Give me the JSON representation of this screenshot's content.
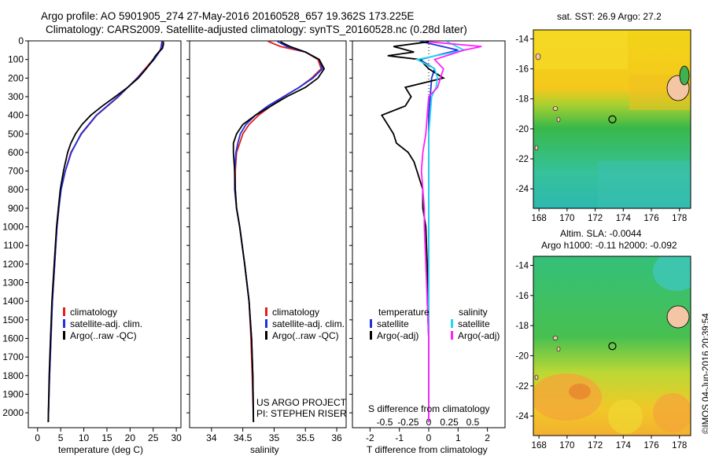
{
  "header": {
    "line1": "Argo profile: AO 5901905_274 27-May-2016 20160528_657 19.362S 173.225E",
    "line2": "Climatology: CARS2009. Satellite-adjusted climatology: synTS_20160528.nc (0.28d later)"
  },
  "colors": {
    "climatology": "#e0201a",
    "satellite": "#2030e0",
    "argo": "#000000",
    "t_satellite": "#2030e0",
    "s_satellite": "#20d8f0",
    "s_argo": "#ff20ff"
  },
  "chart_data": [
    {
      "type": "line",
      "name": "temperature-profile",
      "xlabel": "temperature (deg C)",
      "ylabel": "",
      "xlim": [
        -2,
        31
      ],
      "ylim": [
        2080,
        0
      ],
      "xticks": [
        0,
        5,
        10,
        15,
        20,
        25,
        30
      ],
      "yticks": [
        0,
        100,
        200,
        300,
        400,
        500,
        600,
        700,
        800,
        900,
        1000,
        1100,
        1200,
        1300,
        1400,
        1500,
        1600,
        1700,
        1800,
        1900,
        2000
      ],
      "legend": [
        "climatology",
        "satellite-adj. clim.",
        "Argo(..raw -QC)"
      ],
      "legend_position": "lower-middle",
      "series": [
        {
          "name": "climatology",
          "depth": [
            2,
            50,
            100,
            200,
            300,
            400,
            500,
            600,
            700,
            800,
            900,
            1000,
            1200,
            1400,
            1600,
            1800,
            2050
          ],
          "values": [
            27.2,
            26.5,
            25.0,
            21.5,
            17.5,
            12.8,
            9.5,
            7.2,
            6.0,
            5.0,
            4.6,
            4.2,
            3.7,
            3.2,
            2.9,
            2.6,
            2.3
          ]
        },
        {
          "name": "satellite-adj. clim.",
          "depth": [
            2,
            50,
            100,
            200,
            300,
            400,
            500,
            600,
            700,
            800,
            900,
            1000,
            1200,
            1400,
            1600,
            1800,
            2050
          ],
          "values": [
            26.9,
            26.6,
            25.2,
            21.6,
            17.4,
            12.7,
            9.4,
            7.3,
            6.0,
            5.1,
            4.6,
            4.2,
            3.7,
            3.2,
            2.9,
            2.6,
            2.3
          ]
        },
        {
          "name": "Argo(..raw -QC)",
          "depth": [
            5,
            20,
            40,
            60,
            80,
            100,
            150,
            200,
            250,
            300,
            350,
            400,
            450,
            500,
            550,
            600,
            700,
            800,
            900,
            1000,
            1200,
            1400,
            1600,
            1800,
            2050
          ],
          "values": [
            27.2,
            27.2,
            27.0,
            26.2,
            25.5,
            25.0,
            23.5,
            21.8,
            19.5,
            16.8,
            14.0,
            11.5,
            9.6,
            8.2,
            7.2,
            6.5,
            5.6,
            4.9,
            4.5,
            4.1,
            3.6,
            3.1,
            2.8,
            2.5,
            2.3
          ]
        }
      ]
    },
    {
      "type": "line",
      "name": "salinity-profile",
      "xlabel": "salinity",
      "xlim": [
        33.65,
        36.15
      ],
      "ylim": [
        2080,
        0
      ],
      "xticks": [
        34,
        34.5,
        35,
        35.5,
        36
      ],
      "legend": [
        "climatology",
        "satellite-adj. clim.",
        "Argo(..raw -QC)"
      ],
      "legend_position": "lower-right",
      "annotation": [
        "US ARGO PROJECT",
        "PI: STEPHEN RISER"
      ],
      "series": [
        {
          "name": "climatology",
          "depth": [
            2,
            30,
            60,
            100,
            150,
            200,
            250,
            300,
            350,
            400,
            450,
            500,
            550,
            600,
            700,
            800,
            900,
            1000,
            1200,
            1400,
            1600,
            1800,
            2050
          ],
          "values": [
            34.9,
            35.1,
            35.5,
            35.7,
            35.75,
            35.6,
            35.4,
            35.15,
            34.95,
            34.75,
            34.6,
            34.5,
            34.45,
            34.4,
            34.38,
            34.38,
            34.4,
            34.45,
            34.53,
            34.6,
            34.63,
            34.65,
            34.67
          ]
        },
        {
          "name": "satellite-adj. clim.",
          "depth": [
            2,
            30,
            60,
            100,
            150,
            200,
            250,
            300,
            350,
            400,
            450,
            500,
            550,
            600,
            700,
            800,
            900,
            1000,
            1200,
            1400,
            1600,
            1800,
            2050
          ],
          "values": [
            35.05,
            35.2,
            35.5,
            35.72,
            35.77,
            35.62,
            35.4,
            35.15,
            34.9,
            34.7,
            34.55,
            34.46,
            34.42,
            34.39,
            34.37,
            34.37,
            34.4,
            34.45,
            34.53,
            34.6,
            34.64,
            34.66,
            34.67
          ]
        },
        {
          "name": "Argo(..raw -QC)",
          "depth": [
            5,
            30,
            60,
            100,
            150,
            200,
            250,
            300,
            350,
            400,
            450,
            500,
            550,
            600,
            700,
            800,
            900,
            1000,
            1200,
            1400,
            1600,
            1800,
            2050
          ],
          "values": [
            35.1,
            35.25,
            35.5,
            35.72,
            35.8,
            35.7,
            35.5,
            35.2,
            34.95,
            34.7,
            34.5,
            34.4,
            34.35,
            34.35,
            34.37,
            34.38,
            34.4,
            34.45,
            34.53,
            34.6,
            34.64,
            34.66,
            34.67
          ]
        }
      ]
    },
    {
      "type": "line",
      "name": "difference-profile",
      "xlabel": "T difference from climatology",
      "top_axis_label": "S difference from climatology",
      "xlim": [
        -2.6,
        2.6
      ],
      "ylim": [
        2080,
        0
      ],
      "xticks": [
        -2,
        -1,
        0,
        1,
        2
      ],
      "top_xticks_S": [
        -0.5,
        -0.25,
        0,
        0.25,
        0.5
      ],
      "legend_left_title": "temperature",
      "legend_right_title": "salinity",
      "legend_left": [
        "satellite",
        "Argo(-adj)"
      ],
      "legend_right": [
        "satellite",
        "Argo(-adj)"
      ],
      "series": [
        {
          "name": "T satellite",
          "depth": [
            2,
            50,
            100,
            150,
            200,
            300,
            400,
            500,
            600,
            800,
            1000,
            1400,
            1800,
            2050
          ],
          "values": [
            -0.3,
            1.0,
            -0.3,
            0.2,
            0.1,
            0.05,
            0.0,
            0.0,
            0.0,
            0.0,
            0.0,
            0.0,
            0.0,
            0.0
          ]
        },
        {
          "name": "T Argo(-adj)",
          "depth": [
            5,
            30,
            60,
            80,
            100,
            150,
            200,
            250,
            300,
            350,
            400,
            450,
            500,
            550,
            600,
            650,
            700,
            800,
            900,
            1000,
            1200,
            1400,
            1600,
            1800,
            2050
          ],
          "values": [
            0.0,
            -1.2,
            -0.5,
            -1.4,
            -0.3,
            0.0,
            0.5,
            -0.8,
            -0.6,
            -0.8,
            -1.6,
            -1.4,
            -1.2,
            -1.1,
            -0.7,
            -0.5,
            -0.4,
            -0.2,
            -0.2,
            -0.1,
            -0.05,
            -0.05,
            0.0,
            0.0,
            0.0
          ]
        },
        {
          "name": "S satellite",
          "depth": [
            2,
            50,
            100,
            150,
            200,
            250,
            300,
            400,
            500,
            600,
            800,
            1000,
            1400,
            1800,
            2050
          ],
          "values": [
            0.6,
            1.2,
            -0.4,
            0.2,
            0.3,
            0.25,
            0.1,
            0.05,
            0.0,
            0.0,
            0.0,
            0.0,
            0.0,
            0.0,
            0.0
          ]
        },
        {
          "name": "S Argo(-adj)",
          "depth": [
            5,
            30,
            50,
            100,
            150,
            200,
            250,
            300,
            400,
            500,
            600,
            700,
            800,
            900,
            1000,
            1200,
            1400,
            1600,
            1800,
            2050
          ],
          "values": [
            0.0,
            1.8,
            1.2,
            0.2,
            0.5,
            0.4,
            0.3,
            0.0,
            -0.05,
            -0.1,
            -0.2,
            -0.25,
            -0.2,
            -0.15,
            -0.15,
            -0.1,
            -0.05,
            0.0,
            0.0,
            0.0
          ]
        }
      ]
    },
    {
      "type": "heatmap",
      "name": "sst-map",
      "title": "sat. SST: 26.9  Argo: 27.2",
      "xticks": [
        168,
        170,
        172,
        174,
        176,
        178
      ],
      "yticks": [
        -14,
        -16,
        -18,
        -20,
        -22,
        -24
      ],
      "float_position": {
        "lon": 173.225,
        "lat": -19.362
      }
    },
    {
      "type": "heatmap",
      "name": "sla-map",
      "title_line1": "Altim. SLA: -0.0044",
      "title_line2": "Argo h1000: -0.11 h2000: -0.092",
      "xticks": [
        168,
        170,
        172,
        174,
        176,
        178
      ],
      "yticks": [
        -14,
        -16,
        -18,
        -20,
        -22,
        -24
      ],
      "float_position": {
        "lon": 173.225,
        "lat": -19.362
      }
    }
  ],
  "footer_stamp": "©IMOS 04-Jun-2016 20:39:54"
}
